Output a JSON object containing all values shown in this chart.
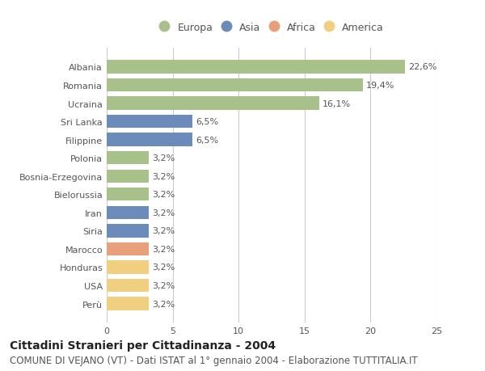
{
  "categories": [
    "Albania",
    "Romania",
    "Ucraina",
    "Sri Lanka",
    "Filippine",
    "Polonia",
    "Bosnia-Erzegovina",
    "Bielorussia",
    "Iran",
    "Siria",
    "Marocco",
    "Honduras",
    "USA",
    "Perù"
  ],
  "values": [
    22.6,
    19.4,
    16.1,
    6.5,
    6.5,
    3.2,
    3.2,
    3.2,
    3.2,
    3.2,
    3.2,
    3.2,
    3.2,
    3.2
  ],
  "labels": [
    "22,6%",
    "19,4%",
    "16,1%",
    "6,5%",
    "6,5%",
    "3,2%",
    "3,2%",
    "3,2%",
    "3,2%",
    "3,2%",
    "3,2%",
    "3,2%",
    "3,2%",
    "3,2%"
  ],
  "continent": [
    "Europa",
    "Europa",
    "Europa",
    "Asia",
    "Asia",
    "Europa",
    "Europa",
    "Europa",
    "Asia",
    "Asia",
    "Africa",
    "America",
    "America",
    "America"
  ],
  "colors": {
    "Europa": "#a8c08a",
    "Asia": "#6b8cba",
    "Africa": "#e8a07a",
    "America": "#f0d080"
  },
  "legend_order": [
    "Europa",
    "Asia",
    "Africa",
    "America"
  ],
  "xlim": [
    0,
    25
  ],
  "xticks": [
    0,
    5,
    10,
    15,
    20,
    25
  ],
  "title": "Cittadini Stranieri per Cittadinanza - 2004",
  "subtitle": "COMUNE DI VEJANO (VT) - Dati ISTAT al 1° gennaio 2004 - Elaborazione TUTTITALIA.IT",
  "bg_color": "#ffffff",
  "grid_color": "#cccccc",
  "bar_height": 0.72,
  "title_fontsize": 10,
  "subtitle_fontsize": 8.5,
  "label_fontsize": 8,
  "tick_fontsize": 8,
  "legend_fontsize": 9
}
